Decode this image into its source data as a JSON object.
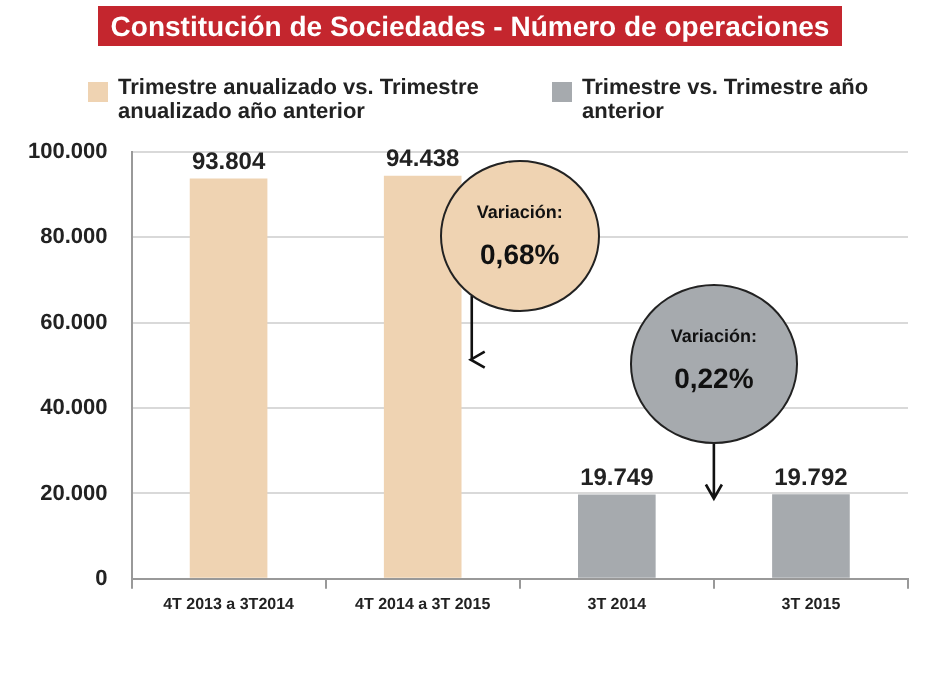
{
  "chart_data": {
    "type": "bar",
    "title": "Constitución de Sociedades - Número de operaciones",
    "categories": [
      "4T 2013 a 3T2014",
      "4T 2014 a 3T 2015",
      "3T 2014",
      "3T 2015"
    ],
    "series": [
      {
        "name": "Trimestre anualizado vs. Trimestre anualizado año anterior",
        "color": "#efd3b2",
        "values": [
          93804,
          94438,
          null,
          null
        ],
        "value_labels": [
          "93.804",
          "94.438",
          null,
          null
        ]
      },
      {
        "name": "Trimestre vs. Trimestre año anterior",
        "color": "#a6aaae",
        "values": [
          null,
          null,
          19749,
          19792
        ],
        "value_labels": [
          null,
          null,
          "19.749",
          "19.792"
        ]
      }
    ],
    "ylim": [
      0,
      100000
    ],
    "yticks": [
      {
        "value": 0,
        "label": "0"
      },
      {
        "value": 20000,
        "label": "20.000"
      },
      {
        "value": 40000,
        "label": "40.000"
      },
      {
        "value": 60000,
        "label": "60.000"
      },
      {
        "value": 80000,
        "label": "80.000"
      },
      {
        "value": 100000,
        "label": "100.000"
      }
    ],
    "grid": "y",
    "legend": "top",
    "annotations": [
      "Variación:",
      "0,68%",
      "Variación:",
      "0,22%"
    ]
  }
}
